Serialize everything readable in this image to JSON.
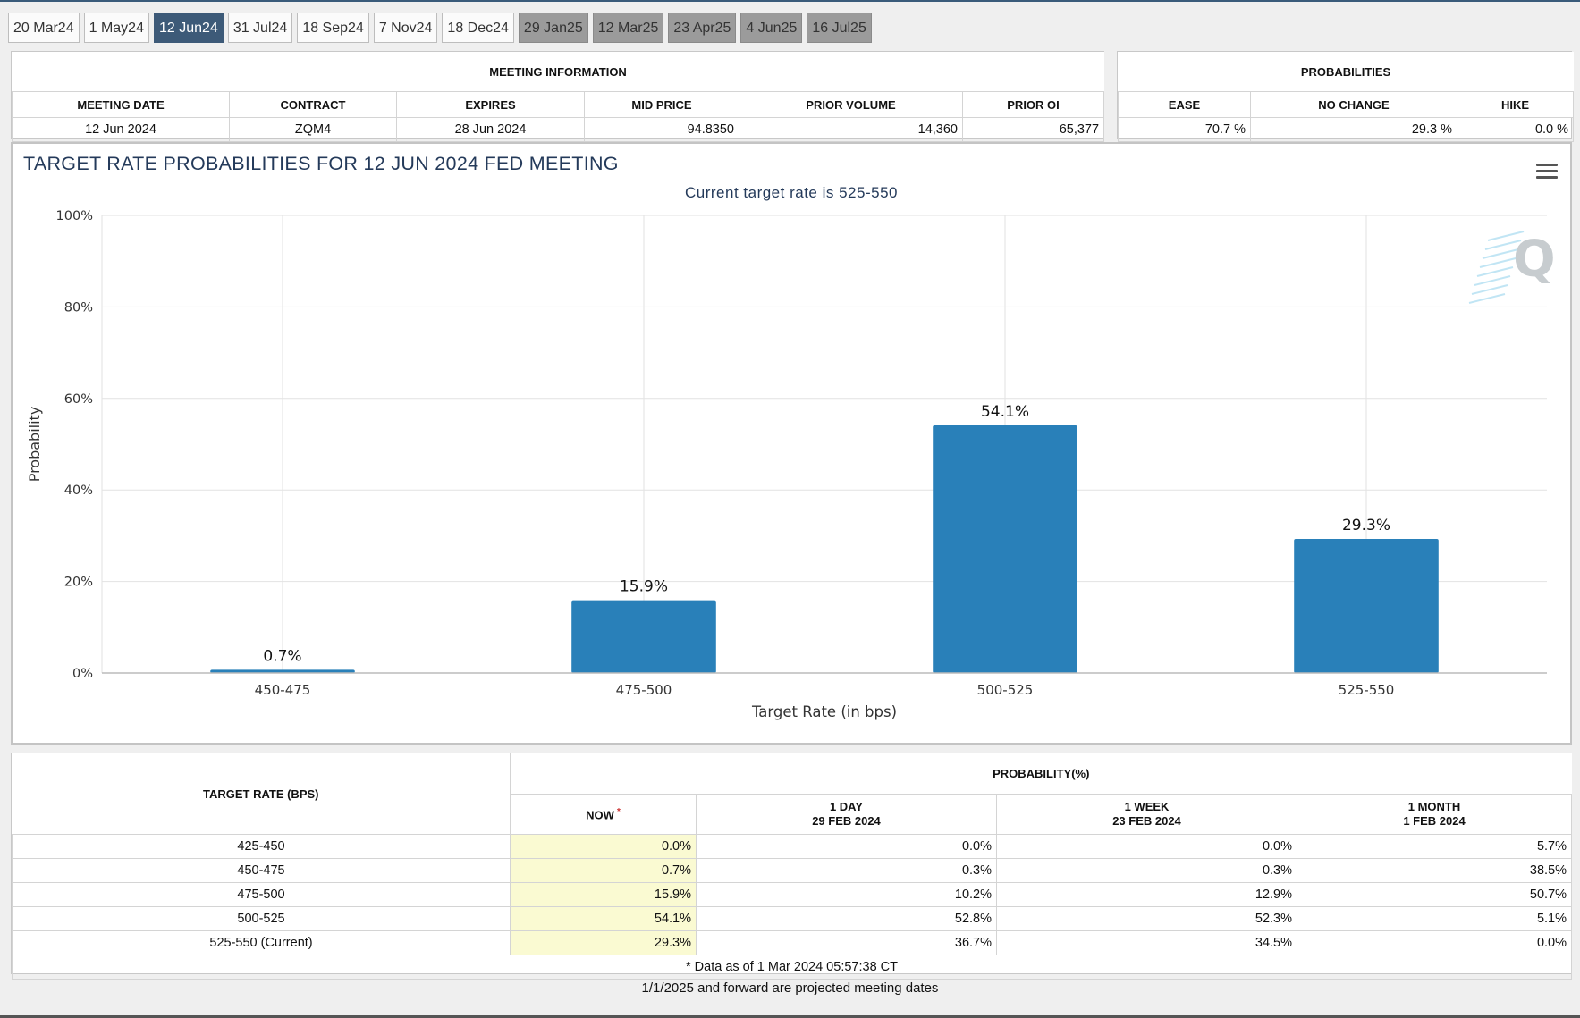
{
  "tabs": [
    {
      "label": "20 Mar24",
      "state": "normal"
    },
    {
      "label": "1 May24",
      "state": "normal"
    },
    {
      "label": "12 Jun24",
      "state": "active"
    },
    {
      "label": "31 Jul24",
      "state": "normal"
    },
    {
      "label": "18 Sep24",
      "state": "normal"
    },
    {
      "label": "7 Nov24",
      "state": "normal"
    },
    {
      "label": "18 Dec24",
      "state": "normal"
    },
    {
      "label": "29 Jan25",
      "state": "projected"
    },
    {
      "label": "12 Mar25",
      "state": "projected"
    },
    {
      "label": "23 Apr25",
      "state": "projected"
    },
    {
      "label": "4 Jun25",
      "state": "projected"
    },
    {
      "label": "16 Jul25",
      "state": "projected"
    }
  ],
  "meeting_info": {
    "title": "MEETING INFORMATION",
    "headers": [
      "MEETING DATE",
      "CONTRACT",
      "EXPIRES",
      "MID PRICE",
      "PRIOR VOLUME",
      "PRIOR OI"
    ],
    "values": [
      "12 Jun 2024",
      "ZQM4",
      "28 Jun 2024",
      "94.8350",
      "14,360",
      "65,377"
    ]
  },
  "probabilities": {
    "title": "PROBABILITIES",
    "headers": [
      "EASE",
      "NO CHANGE",
      "HIKE"
    ],
    "values": [
      "70.7 %",
      "29.3 %",
      "0.0 %"
    ]
  },
  "chart": {
    "title": "TARGET RATE PROBABILITIES FOR 12 JUN 2024 FED MEETING",
    "subtitle": "Current target rate is 525-550"
  },
  "chart_data": {
    "type": "bar",
    "title": "TARGET RATE PROBABILITIES FOR 12 JUN 2024 FED MEETING",
    "subtitle": "Current target rate is 525-550",
    "categories": [
      "450-475",
      "475-500",
      "500-525",
      "525-550"
    ],
    "values": [
      0.7,
      15.9,
      54.1,
      29.3
    ],
    "data_labels": [
      "0.7%",
      "15.9%",
      "54.1%",
      "29.3%"
    ],
    "xlabel": "Target Rate (in bps)",
    "ylabel": "Probability",
    "ylim": [
      0,
      100
    ],
    "yticks": [
      0,
      20,
      40,
      60,
      80,
      100
    ],
    "ytick_labels": [
      "0%",
      "20%",
      "40%",
      "60%",
      "80%",
      "100%"
    ],
    "grid": true,
    "bar_color": "#2980b9"
  },
  "prob_table": {
    "rate_header": "TARGET RATE (BPS)",
    "group_header": "PROBABILITY(%)",
    "col_headers": [
      {
        "line1": "NOW",
        "line2": ""
      },
      {
        "line1": "1 DAY",
        "line2": "29 FEB 2024"
      },
      {
        "line1": "1 WEEK",
        "line2": "23 FEB 2024"
      },
      {
        "line1": "1 MONTH",
        "line2": "1 FEB 2024"
      }
    ],
    "now_mark": "*",
    "rows": [
      {
        "rate": "425-450",
        "now": "0.0%",
        "day": "0.0%",
        "week": "0.0%",
        "month": "5.7%"
      },
      {
        "rate": "450-475",
        "now": "0.7%",
        "day": "0.3%",
        "week": "0.3%",
        "month": "38.5%"
      },
      {
        "rate": "475-500",
        "now": "15.9%",
        "day": "10.2%",
        "week": "12.9%",
        "month": "50.7%"
      },
      {
        "rate": "500-525",
        "now": "54.1%",
        "day": "52.8%",
        "week": "52.3%",
        "month": "5.1%"
      },
      {
        "rate": "525-550 (Current)",
        "now": "29.3%",
        "day": "36.7%",
        "week": "34.5%",
        "month": "0.0%"
      }
    ],
    "data_as_of": "* Data as of 1 Mar 2024 05:57:38 CT"
  },
  "footnote": "1/1/2025 and forward are projected meeting dates"
}
